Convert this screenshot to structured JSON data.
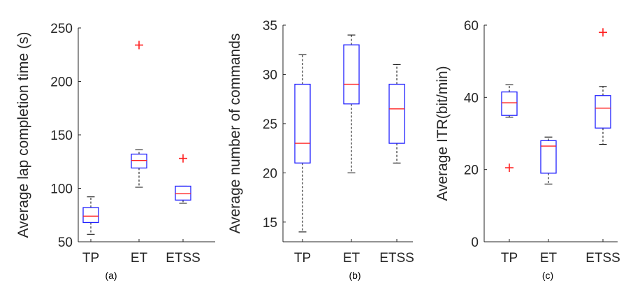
{
  "colors": {
    "box": "#1f1fff",
    "median": "#ff2020",
    "outlier": "#ff2020",
    "axis": "#262626"
  },
  "chart_data": [
    {
      "type": "boxplot",
      "panel_label": "(a)",
      "ylabel": "Average lap completion time (s)",
      "categories": [
        "TP",
        "ET",
        "ETSS"
      ],
      "ylim": [
        50,
        250
      ],
      "yticks": [
        50,
        100,
        150,
        200,
        250
      ],
      "boxes": [
        {
          "min": 57,
          "q1": 68,
          "median": 74,
          "q3": 82,
          "max": 92,
          "outliers": []
        },
        {
          "min": 101,
          "q1": 119,
          "median": 126,
          "q3": 132,
          "max": 136,
          "outliers": [
            234
          ]
        },
        {
          "min": 86,
          "q1": 89,
          "median": 95,
          "q3": 102,
          "max": 102,
          "outliers": [
            128
          ]
        }
      ]
    },
    {
      "type": "boxplot",
      "panel_label": "(b)",
      "ylabel": "Average number of commands",
      "categories": [
        "TP",
        "ET",
        "ETSS"
      ],
      "ylim": [
        13,
        35
      ],
      "yticks": [
        15,
        20,
        25,
        30,
        35
      ],
      "boxes": [
        {
          "min": 14,
          "q1": 21,
          "median": 23,
          "q3": 29,
          "max": 32,
          "outliers": []
        },
        {
          "min": 20,
          "q1": 27,
          "median": 29,
          "q3": 33,
          "max": 34,
          "outliers": []
        },
        {
          "min": 21,
          "q1": 23,
          "median": 26.5,
          "q3": 29,
          "max": 31,
          "outliers": []
        }
      ]
    },
    {
      "type": "boxplot",
      "panel_label": "(c)",
      "ylabel": "Average ITR(bit/min)",
      "categories": [
        "TP",
        "ET",
        "ETSS"
      ],
      "ylim": [
        0,
        60
      ],
      "yticks": [
        0,
        20,
        40,
        60
      ],
      "boxes": [
        {
          "min": 34.5,
          "q1": 35,
          "median": 38.5,
          "q3": 41.5,
          "max": 43.5,
          "outliers": [
            20.5
          ]
        },
        {
          "min": 16,
          "q1": 19,
          "median": 26.5,
          "q3": 28,
          "max": 29,
          "outliers": []
        },
        {
          "min": 27,
          "q1": 31.5,
          "median": 37,
          "q3": 40.5,
          "max": 43,
          "outliers": [
            58
          ]
        }
      ]
    }
  ]
}
